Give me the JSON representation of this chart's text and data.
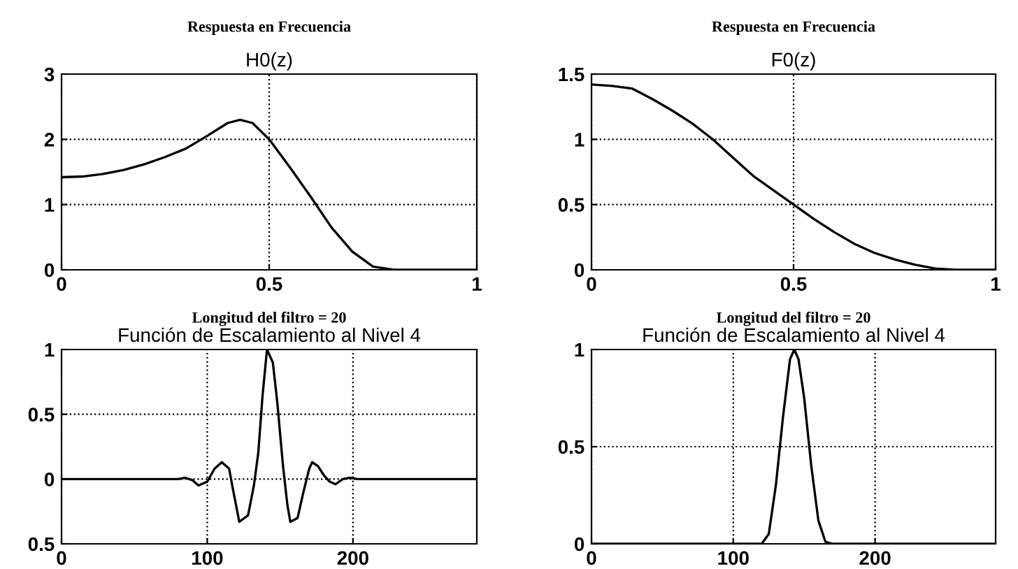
{
  "chart_data": [
    {
      "type": "line",
      "title": "Respuesta en Frecuencia",
      "subtitle": "H0(z)",
      "xlim": [
        0,
        1
      ],
      "xticks": [
        0,
        0.5,
        1
      ],
      "ylim": [
        0,
        3
      ],
      "yticks": [
        0,
        1,
        2,
        3
      ],
      "grid": true,
      "line_style": "solid",
      "series": [
        {
          "color": "#000000",
          "x": [
            0,
            0.05,
            0.1,
            0.15,
            0.2,
            0.25,
            0.3,
            0.35,
            0.4,
            0.43,
            0.46,
            0.5,
            0.55,
            0.6,
            0.65,
            0.7,
            0.75,
            0.8,
            0.9,
            1
          ],
          "values": [
            1.42,
            1.43,
            1.47,
            1.53,
            1.62,
            1.73,
            1.86,
            2.05,
            2.25,
            2.3,
            2.25,
            2.0,
            1.57,
            1.12,
            0.65,
            0.28,
            0.05,
            0,
            0,
            0
          ]
        }
      ]
    },
    {
      "type": "line",
      "title": "Respuesta en Frecuencia",
      "subtitle": "F0(z)",
      "xlim": [
        0,
        1
      ],
      "xticks": [
        0,
        0.5,
        1
      ],
      "ylim": [
        0,
        1.5
      ],
      "yticks": [
        0,
        0.5,
        1,
        1.5
      ],
      "grid": true,
      "line_style": "solid",
      "series": [
        {
          "color": "#000000",
          "x": [
            0,
            0.05,
            0.1,
            0.15,
            0.2,
            0.25,
            0.3,
            0.35,
            0.4,
            0.45,
            0.5,
            0.55,
            0.6,
            0.65,
            0.7,
            0.75,
            0.8,
            0.85,
            0.9,
            1
          ],
          "values": [
            1.42,
            1.41,
            1.39,
            1.31,
            1.22,
            1.12,
            1.0,
            0.86,
            0.72,
            0.61,
            0.5,
            0.39,
            0.29,
            0.2,
            0.13,
            0.08,
            0.04,
            0.01,
            0,
            0
          ]
        }
      ]
    },
    {
      "type": "line",
      "title": "Longitud del filtro = 20",
      "subtitle": "Función de Escalamiento al Nivel 4",
      "xlim": [
        0,
        285
      ],
      "xticks": [
        0,
        100,
        200
      ],
      "ylim": [
        -0.5,
        1
      ],
      "yticks": [
        {
          "value": -0.5,
          "label": "0.5"
        },
        0,
        0.5,
        1
      ],
      "grid": true,
      "line_style": "solid",
      "series": [
        {
          "color": "#000000",
          "x": [
            0,
            80,
            85,
            90,
            94,
            100,
            105,
            110,
            115,
            118,
            122,
            128,
            132,
            135,
            138,
            141,
            145,
            148,
            152,
            155,
            157,
            162,
            166,
            170,
            172,
            176,
            180,
            184,
            188,
            193,
            198,
            203,
            210,
            285
          ],
          "values": [
            0,
            0,
            0.01,
            -0.01,
            -0.05,
            -0.02,
            0.08,
            0.13,
            0.08,
            -0.1,
            -0.33,
            -0.28,
            -0.05,
            0.2,
            0.65,
            1.0,
            0.9,
            0.6,
            0.1,
            -0.2,
            -0.33,
            -0.3,
            -0.1,
            0.08,
            0.13,
            0.1,
            0.03,
            -0.02,
            -0.04,
            0,
            0.01,
            0,
            0,
            0
          ]
        }
      ]
    },
    {
      "type": "line",
      "title": "Longitud del filtro = 20",
      "subtitle": "Función de Escalamiento al Nivel 4",
      "xlim": [
        0,
        285
      ],
      "xticks": [
        0,
        100,
        200
      ],
      "ylim": [
        0,
        1
      ],
      "yticks": [
        0,
        0.5,
        1
      ],
      "grid": true,
      "line_style": "solid",
      "series": [
        {
          "color": "#000000",
          "x": [
            0,
            120,
            125,
            130,
            135,
            140,
            143,
            146,
            150,
            155,
            160,
            165,
            170,
            285
          ],
          "values": [
            0,
            0,
            0.05,
            0.3,
            0.65,
            0.95,
            1.0,
            0.95,
            0.75,
            0.4,
            0.12,
            0.01,
            0,
            0
          ]
        }
      ]
    }
  ]
}
